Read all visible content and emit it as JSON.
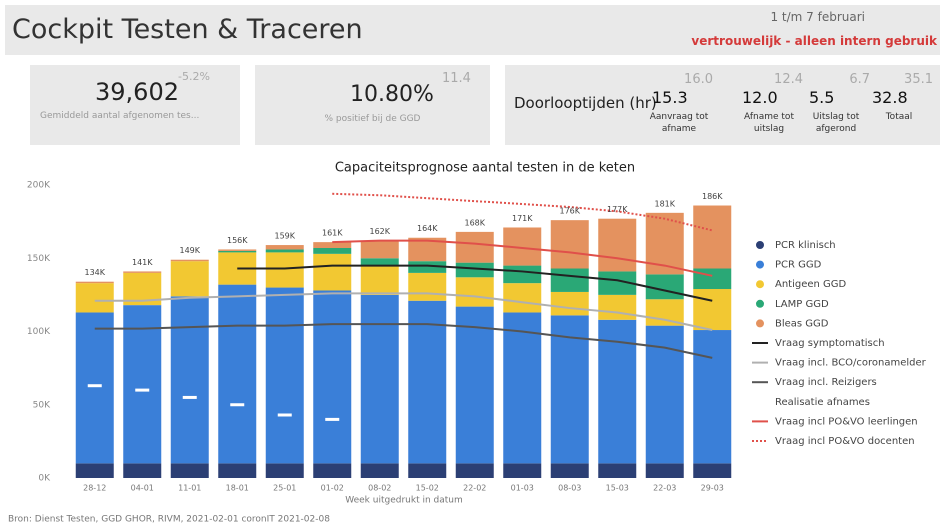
{
  "header": {
    "title": "Cockpit Testen & Traceren",
    "period": "1 t/m 7 februari",
    "confidential": "vertrouwelijk - alleen intern gebruik"
  },
  "kpis": [
    {
      "value": "39,602",
      "change": "-5.2%",
      "label": "Gemiddeld aantal afgenomen tes..."
    },
    {
      "value": "10.80%",
      "previous": "11.4",
      "label": "% positief bij de GGD"
    }
  ],
  "throughput": {
    "title": "Doorlooptijden (hr)",
    "items": [
      {
        "value": "15.3",
        "previous": "16.0",
        "label": "Aanvraag tot afname"
      },
      {
        "value": "12.0",
        "previous": "12.4",
        "label": "Afname tot uitslag"
      },
      {
        "value": "5.5",
        "previous": "6.7",
        "label": "Uitslag tot afgerond"
      },
      {
        "value": "32.8",
        "previous": "35.1",
        "label": "Totaal"
      }
    ]
  },
  "chart_data": {
    "type": "bar",
    "title": "Capaciteitsprognose aantal testen in de keten",
    "x_label": "Week uitgedrukt in datum",
    "source": "Bron: Dienst Testen, GGD GHOR, RIVM, 2021-02-01 coronIT 2021-02-08",
    "categories": [
      "28-12",
      "04-01",
      "11-01",
      "18-01",
      "25-01",
      "01-02",
      "08-02",
      "15-02",
      "22-02",
      "01-03",
      "08-03",
      "15-03",
      "22-03",
      "29-03"
    ],
    "ylim": [
      0,
      200000
    ],
    "yticks": [
      {
        "value": 0,
        "label": "0K"
      },
      {
        "value": 50000,
        "label": "50K"
      },
      {
        "value": 100000,
        "label": "100K"
      },
      {
        "value": 150000,
        "label": "150K"
      },
      {
        "value": 200000,
        "label": "200K"
      }
    ],
    "grid": false,
    "stacked": true,
    "series": [
      {
        "name": "PCR klinisch",
        "type": "bar",
        "color": "#2b3f74",
        "values": [
          10000,
          10000,
          10000,
          10000,
          10000,
          10000,
          10000,
          10000,
          10000,
          10000,
          10000,
          10000,
          10000,
          10000
        ]
      },
      {
        "name": "PCR GGD",
        "type": "bar",
        "color": "#3a7fd8",
        "values": [
          103000,
          108000,
          114000,
          122000,
          120000,
          118000,
          115000,
          111000,
          107000,
          103000,
          101000,
          98000,
          94000,
          91000
        ]
      },
      {
        "name": "Antigeen GGD",
        "type": "bar",
        "color": "#f2c832",
        "values": [
          20000,
          22000,
          24000,
          22000,
          24000,
          25000,
          20000,
          19000,
          20000,
          20000,
          16000,
          17000,
          18000,
          28000
        ]
      },
      {
        "name": "LAMP GGD",
        "type": "bar",
        "color": "#2aa876",
        "values": [
          0,
          0,
          0,
          1000,
          2000,
          4000,
          5000,
          8000,
          10000,
          12000,
          16000,
          16000,
          17000,
          14000
        ]
      },
      {
        "name": "Bleas GGD",
        "type": "bar",
        "color": "#e4925f",
        "values": [
          1000,
          1000,
          1000,
          1000,
          3000,
          4000,
          12000,
          16000,
          21000,
          26000,
          33000,
          36000,
          42000,
          43000
        ]
      },
      {
        "name": "Vraag symptomatisch",
        "type": "line",
        "color": "#222222",
        "values": [
          null,
          null,
          null,
          143000,
          143000,
          145000,
          145000,
          145000,
          143000,
          141000,
          138000,
          135000,
          128000,
          121000
        ]
      },
      {
        "name": "Vraag incl. BCO/coronamelder",
        "type": "line",
        "color": "#b0b0b0",
        "values": [
          121000,
          121000,
          123000,
          124000,
          125000,
          126000,
          126000,
          126000,
          124000,
          120000,
          116000,
          113000,
          108000,
          101000
        ]
      },
      {
        "name": "Vraag incl. Reizigers",
        "type": "line",
        "color": "#555555",
        "values": [
          102000,
          102000,
          103000,
          104000,
          104000,
          105000,
          105000,
          105000,
          103000,
          100000,
          96000,
          93000,
          89000,
          82000
        ]
      },
      {
        "name": "Realisatie afnames",
        "type": "marker",
        "color": "#ffffff",
        "values": [
          63000,
          60000,
          55000,
          50000,
          43000,
          40000,
          null,
          null,
          null,
          null,
          null,
          null,
          null,
          null
        ]
      },
      {
        "name": "Vraag incl PO&VO leerlingen",
        "type": "line",
        "color": "#e0504a",
        "values": [
          null,
          null,
          null,
          null,
          null,
          161000,
          162000,
          162000,
          160000,
          157000,
          154000,
          150000,
          145000,
          138000
        ]
      },
      {
        "name": "Vraag incl PO&VO docenten",
        "type": "line",
        "color": "#e0504a",
        "dash": "dotted",
        "values": [
          null,
          null,
          null,
          null,
          null,
          194000,
          193000,
          191000,
          189000,
          187000,
          185000,
          182000,
          177000,
          169000
        ]
      }
    ],
    "totals": {
      "values": [
        134000,
        141000,
        149000,
        156000,
        159000,
        161000,
        162000,
        164000,
        168000,
        171000,
        176000,
        177000,
        181000,
        186000
      ],
      "value_labels": [
        "134K",
        "141K",
        "149K",
        "156K",
        "159K",
        "161K",
        "162K",
        "164K",
        "168K",
        "171K",
        "176K",
        "177K",
        "181K",
        "186K"
      ]
    }
  }
}
